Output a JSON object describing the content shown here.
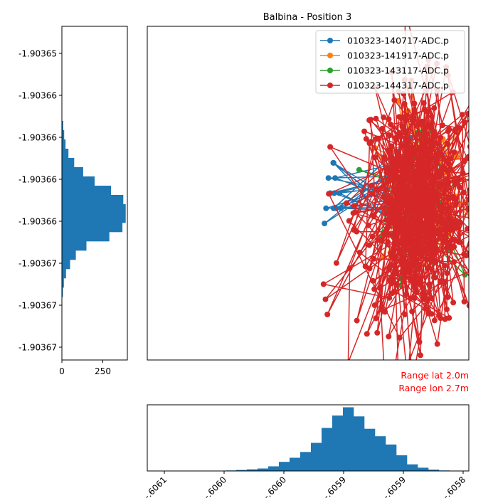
{
  "chart_data": {
    "type": "line",
    "title": "Balbina - Position 3",
    "legend_placement": "top-right",
    "grid": false,
    "annotations": [
      "Range lat 2.0m",
      "Range lon 2.7m"
    ],
    "annotation_color": "#ff0000",
    "side_histogram": {
      "orientation": "horizontal",
      "y_tick_labels": [
        "-1.90365",
        "-1.90366",
        "-1.90366",
        "-1.90366",
        "-1.90366",
        "-1.90367",
        "-1.90367",
        "-1.90367"
      ],
      "x_tick_labels": [
        "0",
        "250"
      ],
      "xlim": [
        0,
        400
      ],
      "counts": [
        2,
        8,
        14,
        22,
        40,
        75,
        130,
        200,
        300,
        375,
        390,
        390,
        370,
        290,
        150,
        85,
        50,
        25,
        12,
        6,
        2
      ]
    },
    "bottom_histogram": {
      "orientation": "vertical",
      "x_tick_labels": [
        "-.6061",
        "-.6060",
        "-.6060",
        "-.6059",
        "-.6059",
        "-.6058"
      ],
      "ylim": [
        0,
        400
      ],
      "counts": [
        1,
        1,
        1,
        3,
        6,
        10,
        15,
        28,
        55,
        80,
        115,
        170,
        260,
        335,
        385,
        330,
        255,
        210,
        160,
        95,
        40,
        20,
        8,
        3
      ]
    },
    "series": [
      {
        "name": "010323-140717-ADC.p",
        "color": "#1f77b4",
        "anchor": [
          -60.5962,
          -1.903662
        ],
        "points": 60,
        "spread": [
          0.5,
          0.45
        ],
        "extra": [
          [
            -60.60095,
            -1.903664
          ],
          [
            -60.60087,
            -1.903663
          ],
          [
            -60.60075,
            -1.903661
          ],
          [
            -60.60065,
            -1.903662
          ],
          [
            -60.60048,
            -1.90366
          ],
          [
            -60.60048,
            -1.903663
          ],
          [
            -60.60035,
            -1.903663
          ],
          [
            -60.6005,
            -1.90366
          ],
          [
            -60.6004,
            -1.903661
          ],
          [
            -60.60045,
            -1.903662
          ],
          [
            -60.60018,
            -1.903662
          ],
          [
            -60.6001,
            -1.903663
          ]
        ]
      },
      {
        "name": "010323-141917-ADC.p",
        "color": "#ff7f0e",
        "anchor": [
          -60.5958,
          -1.903662
        ],
        "points": 80,
        "spread": [
          0.7,
          0.7
        ],
        "extra": [
          [
            -60.59575,
            -1.903658
          ],
          [
            -60.59555,
            -1.90366
          ],
          [
            -60.5953,
            -1.903661
          ],
          [
            -60.5956,
            -1.903665
          ],
          [
            -60.5957,
            -1.903666
          ],
          [
            -60.59585,
            -1.903663
          ]
        ]
      },
      {
        "name": "010323-143117-ADC.p",
        "color": "#2ca02c",
        "anchor": [
          -60.5961,
          -1.903663
        ],
        "points": 80,
        "spread": [
          0.55,
          0.55
        ],
        "extra": [
          [
            -60.596,
            -1.903658
          ],
          [
            -60.5961,
            -1.903667
          ],
          [
            -60.5959,
            -1.903665
          ],
          [
            -60.5962,
            -1.903667
          ]
        ]
      },
      {
        "name": "010323-144317-ADC.p",
        "color": "#d62728",
        "anchor": [
          -60.5961,
          -1.903663
        ],
        "points": 450,
        "spread": [
          1.0,
          1.0
        ],
        "extra": [
          [
            -60.59835,
            -1.903655
          ],
          [
            -60.5979,
            -1.903657
          ],
          [
            -60.5953,
            -1.903658
          ],
          [
            -60.59545,
            -1.903659
          ],
          [
            -60.601,
            -1.903668
          ],
          [
            -60.6009,
            -1.903669
          ],
          [
            -60.6008,
            -1.90367
          ],
          [
            -60.5968,
            -1.90367
          ],
          [
            -60.5958,
            -1.903669
          ],
          [
            -60.5956,
            -1.903669
          ]
        ]
      }
    ]
  }
}
